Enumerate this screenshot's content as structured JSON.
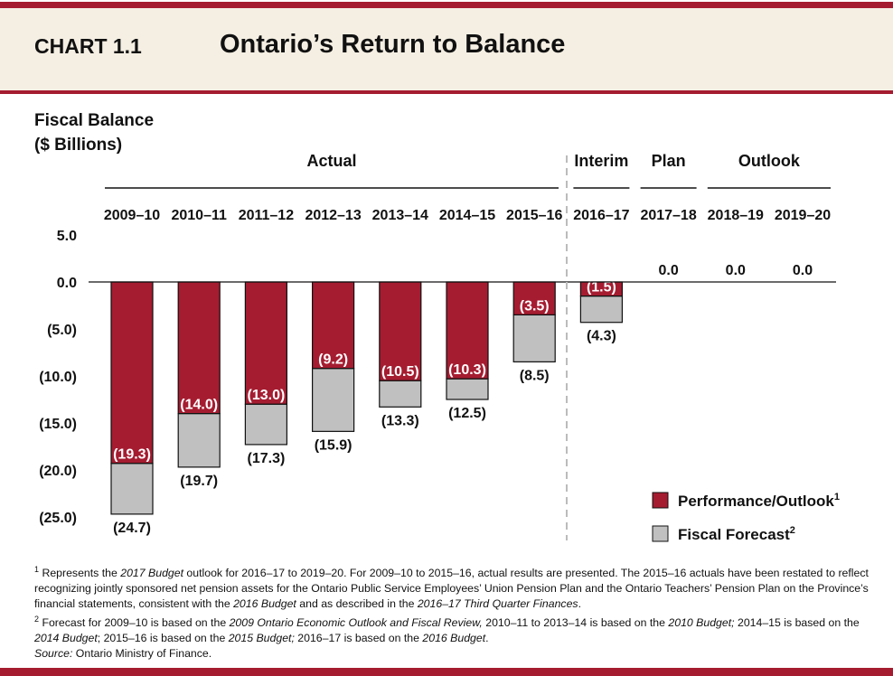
{
  "header": {
    "chart_number": "CHART 1.1",
    "title": "Ontario’s Return to Balance"
  },
  "colors": {
    "performance": "#a51c30",
    "forecast": "#c0c0c0",
    "brand": "#a51c30",
    "band": "#f5efe3"
  },
  "chart_data": {
    "type": "bar",
    "stacked_overlay": true,
    "ylabel": "Fiscal Balance ($ Billions)",
    "ylabel_line1": "Fiscal Balance",
    "ylabel_line2": "($ Billions)",
    "ylim": [
      -25,
      5
    ],
    "yticks": [
      5,
      0,
      -5,
      -10,
      -15,
      -20,
      -25
    ],
    "ytick_labels": [
      "5.0",
      "0.0",
      "(5.0)",
      "(10.0)",
      "(15.0)",
      "(20.0)",
      "(25.0)"
    ],
    "grid": false,
    "categories": [
      "2009–10",
      "2010–11",
      "2011–12",
      "2012–13",
      "2013–14",
      "2014–15",
      "2015–16",
      "2016–17",
      "2017–18",
      "2018–19",
      "2019–20"
    ],
    "groups": [
      {
        "label": "Actual",
        "from": 0,
        "to": 6
      },
      {
        "label": "Interim",
        "from": 7,
        "to": 7
      },
      {
        "label": "Plan",
        "from": 8,
        "to": 8
      },
      {
        "label": "Outlook",
        "from": 9,
        "to": 10
      }
    ],
    "series": [
      {
        "name": "Performance/Outlook",
        "note": "1",
        "values": [
          -19.3,
          -14.0,
          -13.0,
          -9.2,
          -10.5,
          -10.3,
          -3.5,
          -1.5,
          0.0,
          0.0,
          0.0
        ],
        "labels": [
          "(19.3)",
          "(14.0)",
          "(13.0)",
          "(9.2)",
          "(10.5)",
          "(10.3)",
          "(3.5)",
          "(1.5)",
          "0.0",
          "0.0",
          "0.0"
        ]
      },
      {
        "name": "Fiscal Forecast",
        "note": "2",
        "values": [
          -24.7,
          -19.7,
          -17.3,
          -15.9,
          -13.3,
          -12.5,
          -8.5,
          -4.3,
          null,
          null,
          null
        ],
        "labels": [
          "(24.7)",
          "(19.7)",
          "(17.3)",
          "(15.9)",
          "(13.3)",
          "(12.5)",
          "(8.5)",
          "(4.3)",
          null,
          null,
          null
        ]
      }
    ],
    "legend_position": "bottom-right"
  },
  "footnotes": {
    "n1_mark": "1",
    "n1_a": "Represents the ",
    "n1_b": "2017 Budget",
    "n1_c": " outlook for 2016–17 to 2019–20. For 2009–10 to 2015–16, actual results are presented. The 2015–16 actuals have been restated to reflect recognizing jointly sponsored net pension assets for the Ontario Public Service Employees’ Union Pension Plan and the Ontario Teachers’ Pension Plan on the Province’s financial statements, consistent with the ",
    "n1_d": "2016 Budget",
    "n1_e": " and as described in the ",
    "n1_f": "2016–17 Third Quarter Finances",
    "n1_g": ".",
    "n2_mark": "2",
    "n2_a": "Forecast for 2009–10 is based on the ",
    "n2_b": "2009 Ontario Economic Outlook and Fiscal Review,",
    "n2_c": " 2010–11 to 2013–14 is based on the ",
    "n2_d": "2010 Budget;",
    "n2_e": " 2014–15 is based on the ",
    "n2_f": "2014 Budget",
    "n2_g": "; 2015–16 is based on the ",
    "n2_h": "2015 Budget;",
    "n2_i": " 2016–17 is based on the ",
    "n2_j": "2016 Budget",
    "n2_k": ".",
    "source_label": "Source:",
    "source_text": " Ontario Ministry of Finance."
  }
}
